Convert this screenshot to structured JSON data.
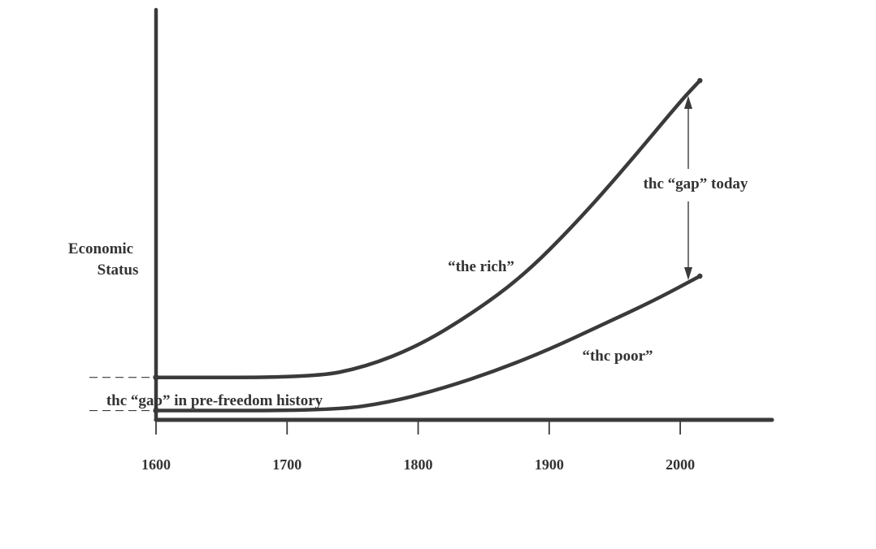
{
  "chart_data": {
    "type": "line",
    "title": "",
    "ylabel_lines": [
      "Economic",
      "Status"
    ],
    "xlabel": "",
    "x_ticks": [
      1600,
      1700,
      1800,
      1900,
      2000
    ],
    "xlim": [
      1600,
      2070
    ],
    "ylim": [
      0,
      100
    ],
    "grid": false,
    "series": [
      {
        "name": "“the rich”",
        "points": [
          [
            1600,
            11
          ],
          [
            1720,
            11
          ],
          [
            1760,
            14
          ],
          [
            1800,
            20
          ],
          [
            1840,
            29
          ],
          [
            1880,
            40
          ],
          [
            1920,
            55
          ],
          [
            1960,
            72
          ],
          [
            2000,
            90
          ],
          [
            2015,
            96
          ]
        ]
      },
      {
        "name": "“thc poor”",
        "points": [
          [
            1600,
            1.5
          ],
          [
            1735,
            1.5
          ],
          [
            1780,
            4
          ],
          [
            1820,
            8
          ],
          [
            1860,
            13
          ],
          [
            1900,
            19
          ],
          [
            1940,
            26
          ],
          [
            1980,
            33
          ],
          [
            2015,
            40
          ]
        ]
      }
    ],
    "annotations": {
      "gap_today": "thc “gap” today",
      "gap_history": "thc “gap” in pre-freedom history"
    },
    "colors": {
      "line": "#3a3a3a",
      "text": "#333333"
    }
  }
}
